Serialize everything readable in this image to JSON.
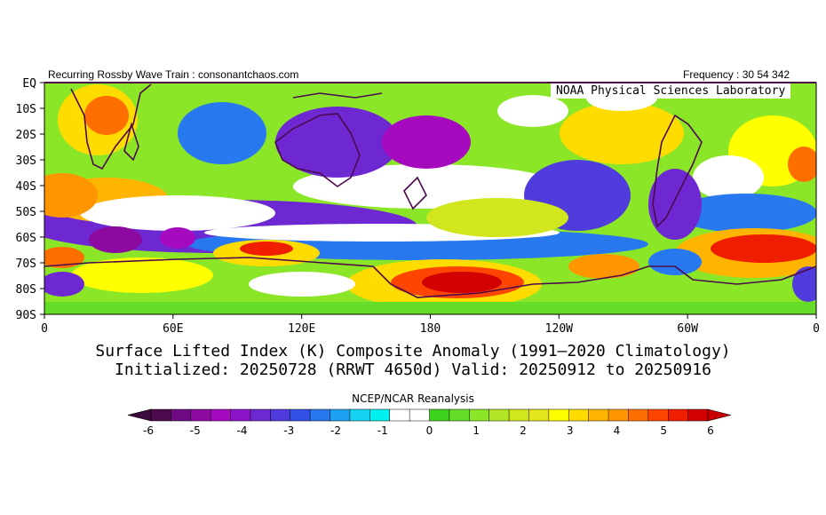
{
  "header": {
    "left_text": "Recurring Rossby Wave Train : consonantchaos.com",
    "right_text": "Frequency : 30 54 342",
    "lab_label": "NOAA Physical Sciences Laboratory"
  },
  "chart_data": {
    "type": "heatmap",
    "title": "Surface Lifted Index (K) Composite Anomaly (1991–2020 Climatology)",
    "subtitle": "Initialized: 20250728 (RRWT 4650d) Valid: 20250912 to 20250916",
    "source": "NCEP/NCAR Reanalysis",
    "y_ticks": [
      "EQ",
      "10S",
      "20S",
      "30S",
      "40S",
      "50S",
      "60S",
      "70S",
      "80S",
      "90S"
    ],
    "x_ticks": [
      "0",
      "60E",
      "120E",
      "180",
      "120W",
      "60W",
      "0"
    ],
    "colorbar": {
      "labels": [
        "-6",
        "-5",
        "-4",
        "-3",
        "-2",
        "-1",
        "0",
        "1",
        "2",
        "3",
        "4",
        "5",
        "6"
      ],
      "colors": [
        "#4b0a4b",
        "#6e0a82",
        "#8c0aa0",
        "#a50abe",
        "#8c14c8",
        "#6e28d2",
        "#503cdc",
        "#3250e6",
        "#2878f0",
        "#1ea0f0",
        "#14d2f0",
        "#00f0f0",
        "#ffffff",
        "#ffffff",
        "#3cd21e",
        "#64dc28",
        "#8ce628",
        "#b4e628",
        "#d2e61e",
        "#e6e61e",
        "#ffff00",
        "#ffdc00",
        "#ffb400",
        "#ff9600",
        "#ff6e00",
        "#ff4600",
        "#f01e00",
        "#d20000"
      ]
    }
  }
}
